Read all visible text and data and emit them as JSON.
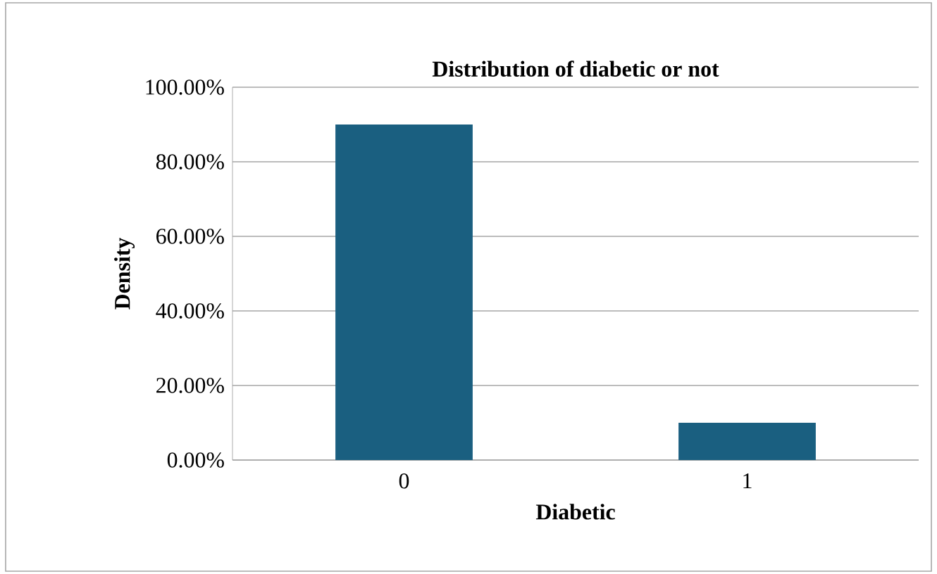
{
  "chart_data": {
    "type": "bar",
    "title": "Distribution of diabetic or not",
    "xlabel": "Diabetic",
    "ylabel": "Density",
    "categories": [
      "0",
      "1"
    ],
    "values": [
      90,
      10
    ],
    "color": "#1a5f80",
    "ylim": [
      0,
      100
    ],
    "yticks": [
      {
        "value": 0,
        "label": "0.00%"
      },
      {
        "value": 20,
        "label": "20.00%"
      },
      {
        "value": 40,
        "label": "40.00%"
      },
      {
        "value": 60,
        "label": "60.00%"
      },
      {
        "value": 80,
        "label": "80.00%"
      },
      {
        "value": 100,
        "label": "100.00%"
      }
    ],
    "grid": "y"
  }
}
